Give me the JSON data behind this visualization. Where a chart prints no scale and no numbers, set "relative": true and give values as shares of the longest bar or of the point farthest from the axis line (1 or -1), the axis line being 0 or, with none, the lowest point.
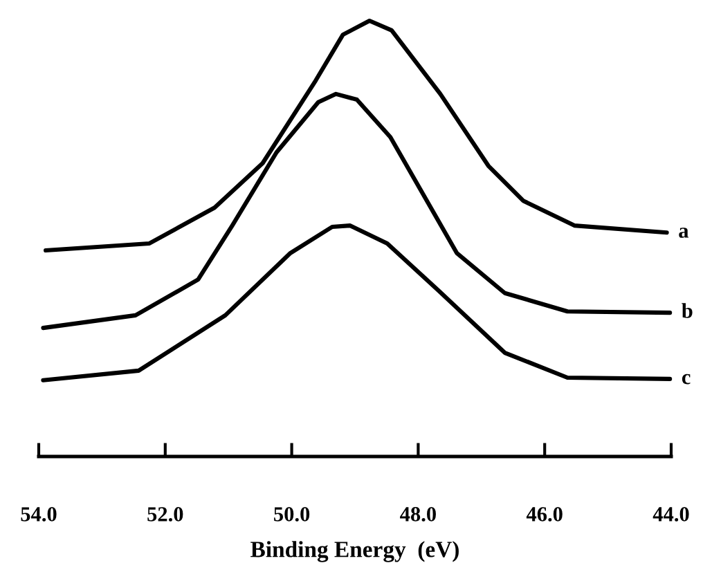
{
  "chart_data": {
    "type": "line",
    "relative": true,
    "xlabel": "Binding Energy  (eV)",
    "xlim": [
      54,
      44
    ],
    "xticks": [
      {
        "value": 54,
        "label": "54.0"
      },
      {
        "value": 52,
        "label": "52.0"
      },
      {
        "value": 50,
        "label": "50.0"
      },
      {
        "value": 48,
        "label": "48.0"
      },
      {
        "value": 46,
        "label": "46.0"
      },
      {
        "value": 44,
        "label": "44.0"
      }
    ],
    "tick_labels": "x",
    "grid": false,
    "legend": false,
    "marker": "none",
    "line_style": "solid",
    "series": [
      {
        "name": "a",
        "color": "#000000",
        "x": [
          53.89,
          52.25,
          51.22,
          50.46,
          49.62,
          49.19,
          48.77,
          48.42,
          47.65,
          46.89,
          46.34,
          45.53,
          44.07
        ],
        "values": [
          0.473,
          0.489,
          0.571,
          0.673,
          0.863,
          0.968,
          1.0,
          0.978,
          0.832,
          0.667,
          0.587,
          0.53,
          0.514
        ]
      },
      {
        "name": "b",
        "color": "#000000",
        "x": [
          53.93,
          52.47,
          51.48,
          50.94,
          50.24,
          49.58,
          49.3,
          48.97,
          48.44,
          47.39,
          46.63,
          45.64,
          44.02
        ],
        "values": [
          0.295,
          0.324,
          0.406,
          0.53,
          0.698,
          0.813,
          0.832,
          0.819,
          0.733,
          0.467,
          0.375,
          0.333,
          0.33
        ]
      },
      {
        "name": "c",
        "color": "#000000",
        "x": [
          53.93,
          52.42,
          51.05,
          50.02,
          49.36,
          49.08,
          48.49,
          47.68,
          46.63,
          45.64,
          44.02
        ],
        "values": [
          0.175,
          0.197,
          0.324,
          0.467,
          0.527,
          0.53,
          0.489,
          0.381,
          0.238,
          0.181,
          0.178
        ]
      }
    ]
  }
}
